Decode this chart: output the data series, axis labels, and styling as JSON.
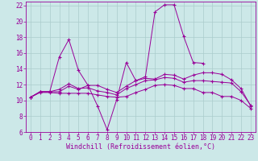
{
  "background_color": "#cce8e8",
  "grid_color": "#aacccc",
  "line_color": "#990099",
  "marker": "+",
  "xlim": [
    -0.5,
    23.5
  ],
  "ylim": [
    6,
    22.5
  ],
  "xlabel": "Windchill (Refroidissement éolien,°C)",
  "xlabel_fontsize": 6.0,
  "xticks": [
    0,
    1,
    2,
    3,
    4,
    5,
    6,
    7,
    8,
    9,
    10,
    11,
    12,
    13,
    14,
    15,
    16,
    17,
    18,
    19,
    20,
    21,
    22,
    23
  ],
  "yticks": [
    6,
    8,
    10,
    12,
    14,
    16,
    18,
    20,
    22
  ],
  "tick_fontsize": 5.5,
  "lines": [
    {
      "x": [
        0,
        1,
        2,
        3,
        4,
        5,
        6,
        7,
        8,
        9,
        10,
        11,
        12,
        13,
        14,
        15,
        16,
        17,
        18,
        19,
        20,
        21,
        22,
        23
      ],
      "y": [
        10.4,
        11.1,
        11.1,
        15.5,
        17.7,
        13.8,
        11.9,
        9.3,
        6.3,
        10.1,
        14.8,
        12.5,
        13.0,
        21.2,
        22.1,
        22.1,
        18.1,
        14.8,
        14.7,
        null,
        null,
        null,
        null,
        null
      ]
    },
    {
      "x": [
        0,
        1,
        2,
        3,
        4,
        5,
        6,
        7,
        8,
        9,
        10,
        11,
        12,
        13,
        14,
        15,
        16,
        17,
        18,
        19,
        20,
        21,
        22,
        23
      ],
      "y": [
        10.4,
        11.1,
        11.1,
        11.1,
        11.8,
        11.4,
        11.9,
        11.9,
        11.4,
        11.0,
        11.8,
        12.5,
        12.8,
        12.7,
        13.3,
        13.2,
        12.7,
        13.2,
        13.5,
        13.5,
        13.3,
        12.6,
        11.5,
        9.3
      ]
    },
    {
      "x": [
        0,
        1,
        2,
        3,
        4,
        5,
        6,
        7,
        8,
        9,
        10,
        11,
        12,
        13,
        14,
        15,
        16,
        17,
        18,
        19,
        20,
        21,
        22,
        23
      ],
      "y": [
        10.4,
        11.1,
        11.1,
        11.4,
        12.1,
        11.5,
        11.6,
        11.2,
        11.0,
        10.7,
        11.5,
        12.0,
        12.5,
        12.6,
        12.9,
        12.8,
        12.3,
        12.5,
        12.5,
        12.4,
        12.3,
        12.2,
        11.1,
        9.4
      ]
    },
    {
      "x": [
        0,
        1,
        2,
        3,
        4,
        5,
        6,
        7,
        8,
        9,
        10,
        11,
        12,
        13,
        14,
        15,
        16,
        17,
        18,
        19,
        20,
        21,
        22,
        23
      ],
      "y": [
        10.4,
        11.0,
        11.0,
        10.9,
        10.9,
        10.9,
        10.9,
        10.7,
        10.5,
        10.4,
        10.5,
        11.0,
        11.4,
        11.9,
        12.0,
        11.9,
        11.5,
        11.5,
        11.0,
        11.0,
        10.5,
        10.5,
        10.0,
        9.0
      ]
    }
  ]
}
